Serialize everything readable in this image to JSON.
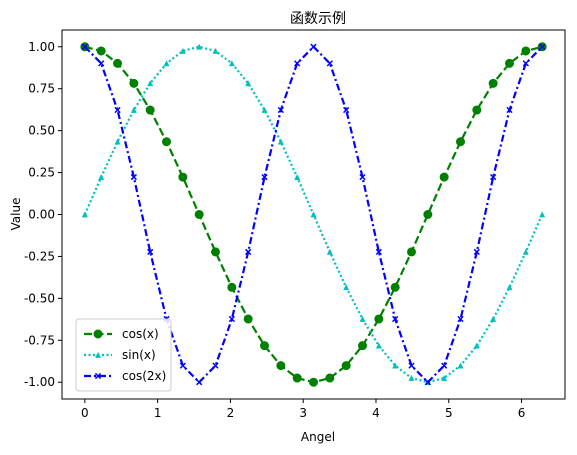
{
  "chart_data": {
    "type": "line",
    "title": "函数示例",
    "xlabel": "Angel",
    "ylabel": "Value",
    "xlim": [
      -0.314,
      6.597
    ],
    "ylim": [
      -1.1,
      1.1
    ],
    "xticks": [
      0,
      1,
      2,
      3,
      4,
      5,
      6
    ],
    "xtick_labels": [
      "0",
      "1",
      "2",
      "3",
      "4",
      "5",
      "6"
    ],
    "yticks": [
      1.0,
      0.75,
      0.5,
      0.25,
      0.0,
      -0.25,
      -0.5,
      -0.75,
      -1.0
    ],
    "ytick_labels": [
      "1.00",
      "0.75",
      "0.50",
      "0.25",
      "0.00",
      "-0.25",
      "-0.50",
      "-0.75",
      "-1.00"
    ],
    "grid": false,
    "legend_position": "lower-left",
    "x": [
      0,
      0.2244,
      0.4488,
      0.6732,
      0.8976,
      1.122,
      1.3464,
      1.5708,
      1.7952,
      2.0196,
      2.244,
      2.4684,
      2.6928,
      2.9172,
      3.1416,
      3.366,
      3.5904,
      3.8148,
      4.0392,
      4.2636,
      4.488,
      4.7124,
      4.9368,
      5.1612,
      5.3856,
      5.61,
      5.8344,
      6.0588,
      6.2832
    ],
    "series": [
      {
        "name": "cos(x)",
        "color": "#008000",
        "linestyle": "dashed",
        "marker": "circle",
        "values": [
          1.0,
          0.975,
          0.901,
          0.782,
          0.623,
          0.434,
          0.223,
          0.0,
          -0.223,
          -0.434,
          -0.623,
          -0.782,
          -0.901,
          -0.975,
          -1.0,
          -0.975,
          -0.901,
          -0.782,
          -0.623,
          -0.434,
          -0.223,
          0.0,
          0.223,
          0.434,
          0.623,
          0.782,
          0.901,
          0.975,
          1.0
        ]
      },
      {
        "name": "sin(x)",
        "color": "#00bfbf",
        "linestyle": "dotted",
        "marker": "triangle",
        "values": [
          0.0,
          0.223,
          0.434,
          0.623,
          0.782,
          0.901,
          0.975,
          1.0,
          0.975,
          0.901,
          0.782,
          0.623,
          0.434,
          0.223,
          0.0,
          -0.223,
          -0.434,
          -0.623,
          -0.782,
          -0.901,
          -0.975,
          -1.0,
          -0.975,
          -0.901,
          -0.782,
          -0.623,
          -0.434,
          -0.223,
          0.0
        ]
      },
      {
        "name": "cos(2x)",
        "color": "#0000ff",
        "linestyle": "dashdot",
        "marker": "x",
        "values": [
          1.0,
          0.901,
          0.623,
          0.223,
          -0.223,
          -0.623,
          -0.901,
          -1.0,
          -0.901,
          -0.623,
          -0.223,
          0.223,
          0.623,
          0.901,
          1.0,
          0.901,
          0.623,
          0.223,
          -0.223,
          -0.623,
          -0.901,
          -1.0,
          -0.901,
          -0.623,
          -0.223,
          0.223,
          0.623,
          0.901,
          1.0
        ]
      }
    ]
  }
}
